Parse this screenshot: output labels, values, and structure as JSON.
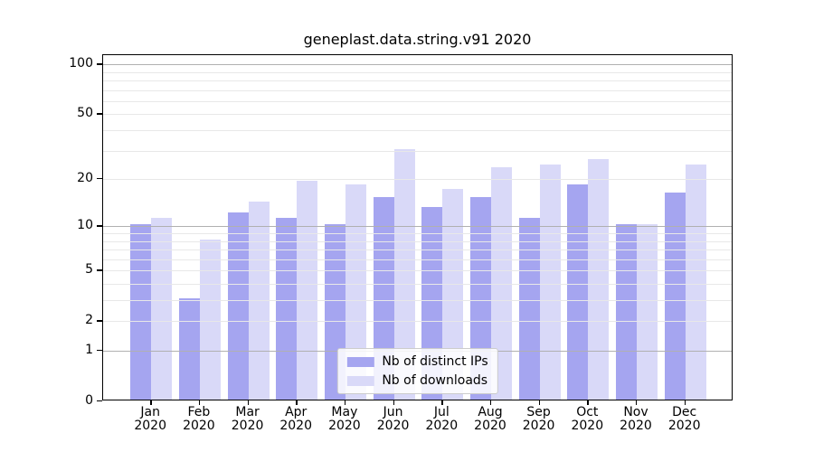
{
  "figure": {
    "background": "#ffffff"
  },
  "chart_data": {
    "type": "bar",
    "title": "geneplast.data.string.v91 2020",
    "categories": [
      "Jan 2020",
      "Feb 2020",
      "Mar 2020",
      "Apr 2020",
      "May 2020",
      "Jun 2020",
      "Jul 2020",
      "Aug 2020",
      "Sep 2020",
      "Oct 2020",
      "Nov 2020",
      "Dec 2020"
    ],
    "series": [
      {
        "name": "Nb of distinct IPs",
        "color": "#a5a5f0",
        "values": [
          10,
          3,
          12,
          11,
          10,
          15,
          13,
          15,
          11,
          18,
          10,
          16
        ]
      },
      {
        "name": "Nb of downloads",
        "color": "#d9d9f8",
        "values": [
          11,
          8,
          14,
          19,
          18,
          30,
          17,
          23,
          24,
          26,
          10,
          24
        ]
      }
    ],
    "xlabel": "",
    "ylabel": "",
    "y_scale": "log10(value+1)",
    "y_tick_labels": [
      100,
      50,
      20,
      10,
      5,
      2,
      1,
      0
    ],
    "grid": "on",
    "grid_major_values": [
      1,
      10,
      100
    ],
    "grid_minor_values": [
      2,
      3,
      4,
      5,
      6,
      7,
      8,
      9,
      20,
      30,
      40,
      50,
      60,
      70,
      80,
      90
    ],
    "ylim": [
      0,
      115
    ],
    "legend_position": "lower center"
  },
  "colors": {
    "axis": "#000000",
    "grid_major": "#b0b0b0",
    "grid_minor": "#e8e8e8",
    "legend_border": "#cccccc",
    "legend_background": "rgba(255,255,255,0.85)",
    "text": "#000000"
  }
}
